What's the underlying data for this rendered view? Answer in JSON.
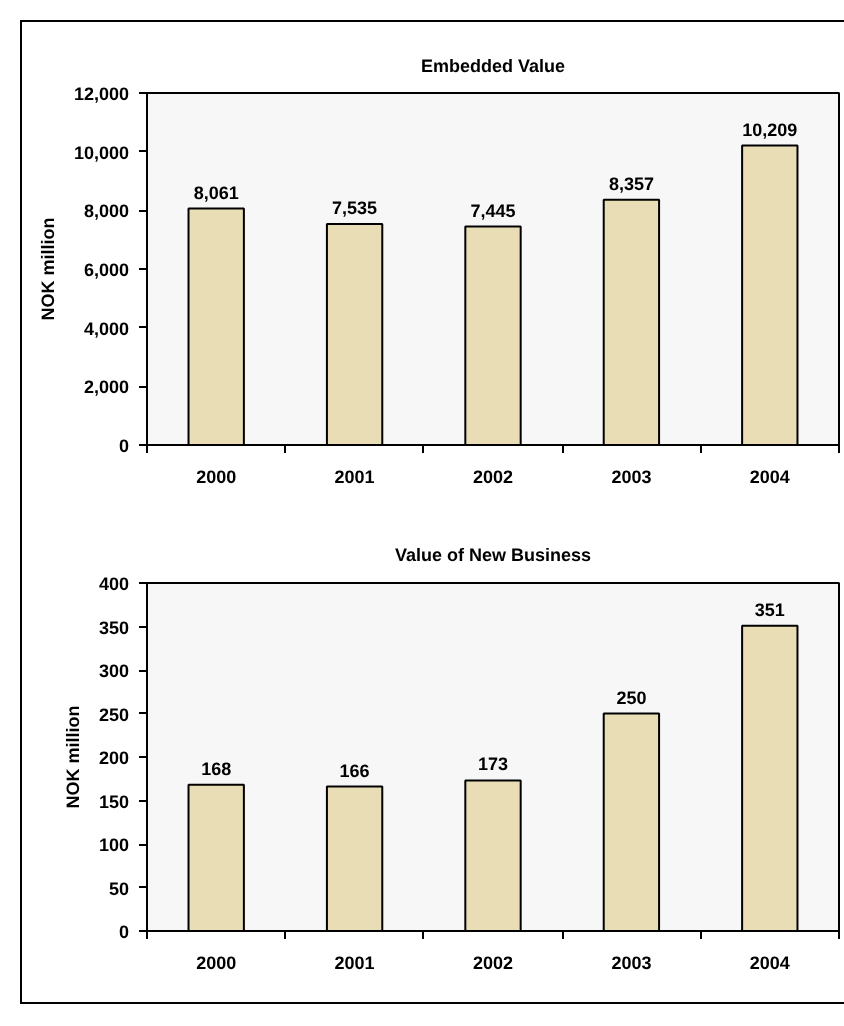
{
  "chart_data": [
    {
      "type": "bar",
      "title": "Embedded Value",
      "ylabel": "NOK million",
      "categories": [
        "2000",
        "2001",
        "2002",
        "2003",
        "2004"
      ],
      "values": [
        8061,
        7535,
        7445,
        8357,
        10209
      ],
      "value_labels": [
        "8,061",
        "7,535",
        "7,445",
        "8,357",
        "10,209"
      ],
      "color": "#e8ddb5",
      "ylim": [
        0,
        12000
      ],
      "yticks": [
        0,
        {
          "value": 2000,
          "label": "2,000"
        },
        {
          "value": 4000,
          "label": "4,000"
        },
        {
          "value": 6000,
          "label": "6,000"
        },
        {
          "value": 8000,
          "label": "8,000"
        },
        {
          "value": 10000,
          "label": "10,000"
        },
        {
          "value": 12000,
          "label": "12,000"
        }
      ]
    },
    {
      "type": "bar",
      "title": "Value of New Business",
      "ylabel": "NOK million",
      "categories": [
        "2000",
        "2001",
        "2002",
        "2003",
        "2004"
      ],
      "values": [
        168,
        166,
        173,
        250,
        351
      ],
      "color": "#e8ddb5",
      "ylim": [
        0,
        400
      ],
      "yticks": [
        0,
        50,
        100,
        150,
        200,
        250,
        300,
        350,
        400
      ],
      "data_labels": true
    }
  ]
}
